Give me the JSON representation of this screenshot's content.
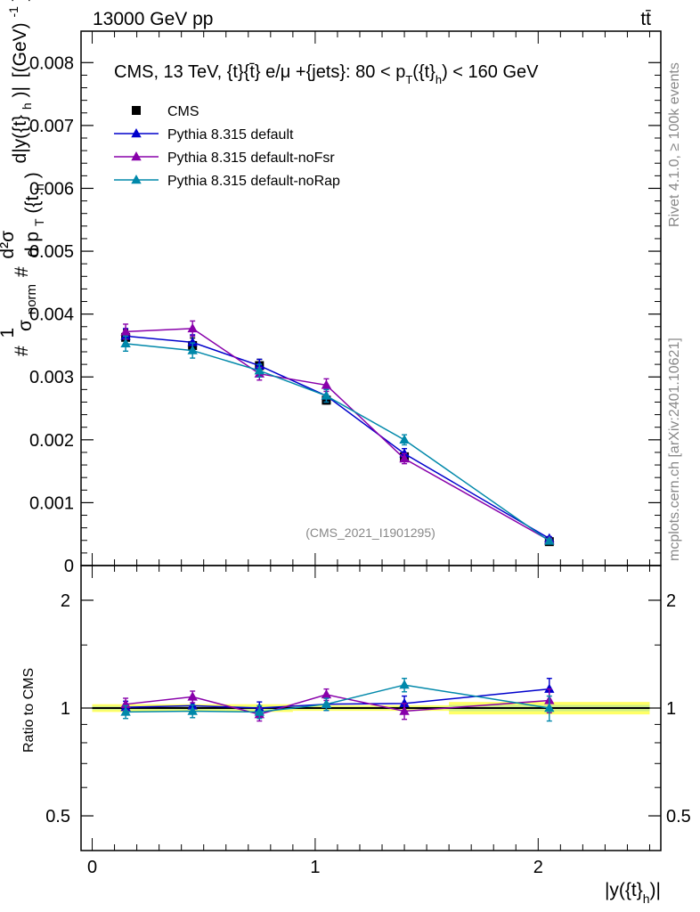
{
  "header": {
    "beam": "13000 GeV pp",
    "process": "tt̄"
  },
  "side": {
    "rivet": "Rivet 4.1.0, ≥ 100k events",
    "mcplots": "mcplots.cern.ch [arXiv:2401.10621]"
  },
  "chart_data": [
    {
      "type": "line",
      "title": "CMS, 13 TeV, {t}{t̄} e/μ +{jets}: 80 < p_T({t}_h) < 160 GeV",
      "ylabel": "1/σ_norm · d²σ / d p_T({t}_h) d|y({t}_h)| [(GeV)⁻¹]",
      "ylabel_parts": [
        "#",
        "1",
        "σ",
        "norm",
        "#",
        "d²σ",
        "d p",
        "T",
        "({t",
        "h",
        ")",
        "d|y({t}",
        "h",
        ")|",
        "[(GeV)",
        "-1",
        "]"
      ],
      "watermark": "(CMS_2021_I1901295)",
      "xlim": [
        -0.05,
        2.55
      ],
      "ylim": [
        0,
        0.0085
      ],
      "yticks": [
        0,
        0.001,
        0.002,
        0.003,
        0.004,
        0.005,
        0.006,
        0.007,
        0.008
      ],
      "ytick_labels": [
        "0",
        "0.001",
        "0.002",
        "0.003",
        "0.004",
        "0.005",
        "0.006",
        "0.007",
        "0.008"
      ],
      "x": [
        0.15,
        0.45,
        0.75,
        1.05,
        1.4,
        2.05
      ],
      "series": [
        {
          "name": "CMS",
          "color": "#000000",
          "marker": "square",
          "values": [
            0.00363,
            0.0035,
            0.00318,
            0.00263,
            0.00173,
            0.00038
          ],
          "errors": [
            0.00012,
            0.00012,
            0.0001,
            6e-05,
            5e-05,
            2e-05
          ]
        },
        {
          "name": "Pythia 8.315 default",
          "color": "#0000cc",
          "marker": "triangle",
          "values": [
            0.00365,
            0.00355,
            0.00318,
            0.0027,
            0.00178,
            0.00043
          ],
          "errors": [
            0.00012,
            0.00012,
            0.0001,
            0.0001,
            8e-05,
            3e-05
          ]
        },
        {
          "name": "Pythia 8.315 default-noFsr",
          "color": "#8800aa",
          "marker": "triangle",
          "values": [
            0.00372,
            0.00377,
            0.00305,
            0.00287,
            0.0017,
            0.0004
          ],
          "errors": [
            0.00012,
            0.00012,
            0.0001,
            0.0001,
            8e-05,
            3e-05
          ]
        },
        {
          "name": "Pythia 8.315 default-noRap",
          "color": "#0088aa",
          "marker": "triangle",
          "values": [
            0.00353,
            0.00342,
            0.0031,
            0.0027,
            0.002,
            0.00039
          ],
          "errors": [
            0.00012,
            0.00012,
            0.0001,
            0.0001,
            8e-05,
            3e-05
          ]
        }
      ]
    },
    {
      "type": "line",
      "ylabel": "Ratio to CMS",
      "xlabel": "|y({t}_h)|",
      "xlabel_parts": [
        "|y({t}",
        "h",
        ")|"
      ],
      "scale": "log",
      "xlim": [
        -0.05,
        2.55
      ],
      "ylim": [
        0.4,
        2.5
      ],
      "yticks": [
        0.5,
        1,
        2
      ],
      "ytick_labels": [
        "0.5",
        "1",
        "2"
      ],
      "xticks": [
        0,
        1,
        2
      ],
      "xtick_labels": [
        "0",
        "1",
        "2"
      ],
      "x": [
        0.15,
        0.45,
        0.75,
        1.05,
        1.4,
        2.05
      ],
      "band": {
        "x": [
          0.0,
          0.3,
          0.6,
          0.9,
          1.2,
          1.6,
          2.5
        ],
        "half_width": [
          0.025,
          0.025,
          0.025,
          0.018,
          0.018,
          0.04,
          0.04
        ],
        "colors": [
          "#ffff66",
          "#ccee88"
        ]
      },
      "series": [
        {
          "name": "Pythia 8.315 default",
          "color": "#0000cc",
          "values": [
            1.005,
            1.015,
            1.0,
            1.025,
            1.03,
            1.13
          ],
          "errors": [
            0.04,
            0.04,
            0.04,
            0.04,
            0.05,
            0.08
          ]
        },
        {
          "name": "Pythia 8.315 default-noFsr",
          "color": "#8800aa",
          "values": [
            1.025,
            1.075,
            0.96,
            1.09,
            0.98,
            1.05
          ],
          "errors": [
            0.04,
            0.04,
            0.04,
            0.04,
            0.05,
            0.08
          ]
        },
        {
          "name": "Pythia 8.315 default-noRap",
          "color": "#0088aa",
          "values": [
            0.975,
            0.98,
            0.975,
            1.025,
            1.16,
            1.0
          ],
          "errors": [
            0.04,
            0.04,
            0.04,
            0.04,
            0.05,
            0.08
          ]
        }
      ]
    }
  ]
}
